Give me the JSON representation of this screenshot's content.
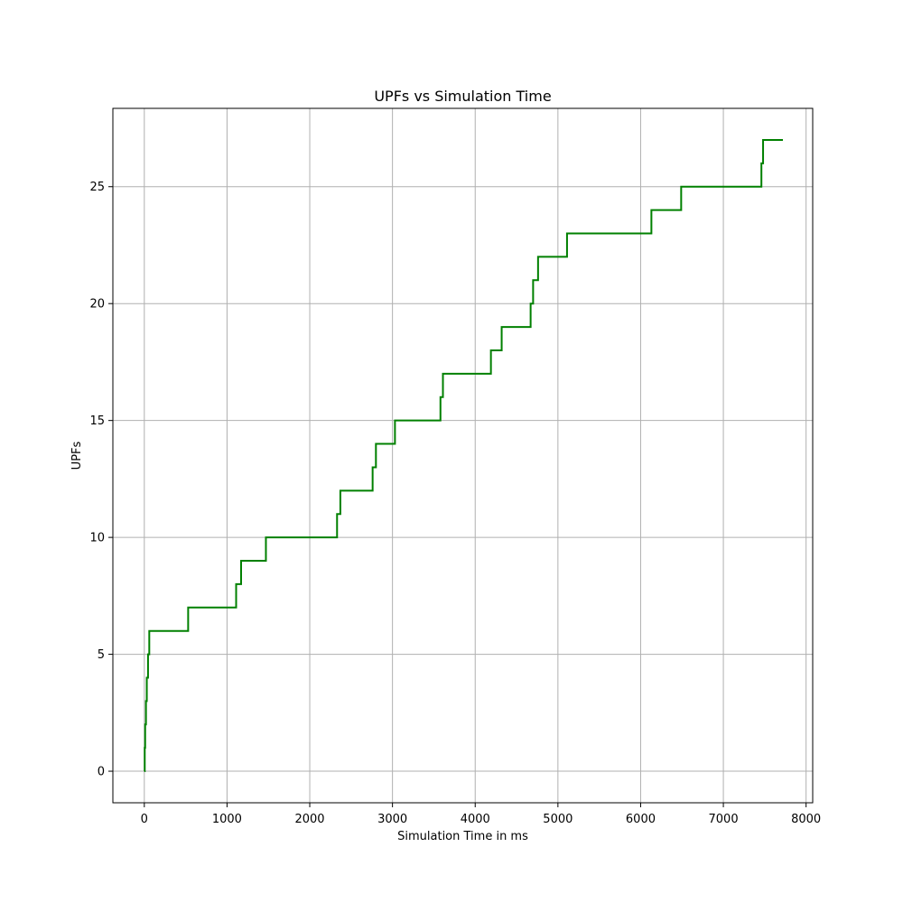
{
  "chart_data": {
    "type": "line",
    "step": "post",
    "title": "UPFs vs Simulation Time",
    "xlabel": "Simulation Time in ms",
    "ylabel": "UPFs",
    "xlim": [
      -380,
      8080
    ],
    "ylim": [
      -1.35,
      28.35
    ],
    "xticks": [
      0,
      1000,
      2000,
      3000,
      4000,
      5000,
      6000,
      7000,
      8000
    ],
    "yticks": [
      0,
      5,
      10,
      15,
      20,
      25
    ],
    "grid": true,
    "line_color": "#008000",
    "grid_color": "#b0b0b0",
    "series": [
      {
        "x": [
          0,
          5,
          10,
          20,
          30,
          45,
          60,
          530,
          1110,
          1170,
          1470,
          2330,
          2370,
          2760,
          2800,
          3030,
          3580,
          3610,
          4190,
          4320,
          4670,
          4700,
          4760,
          5110,
          6130,
          6490,
          7460,
          7480,
          7720
        ],
        "y": [
          0,
          1,
          2,
          3,
          4,
          5,
          6,
          7,
          8,
          9,
          10,
          11,
          12,
          13,
          14,
          15,
          16,
          17,
          18,
          19,
          20,
          21,
          22,
          23,
          24,
          25,
          26,
          27,
          27
        ]
      }
    ]
  }
}
